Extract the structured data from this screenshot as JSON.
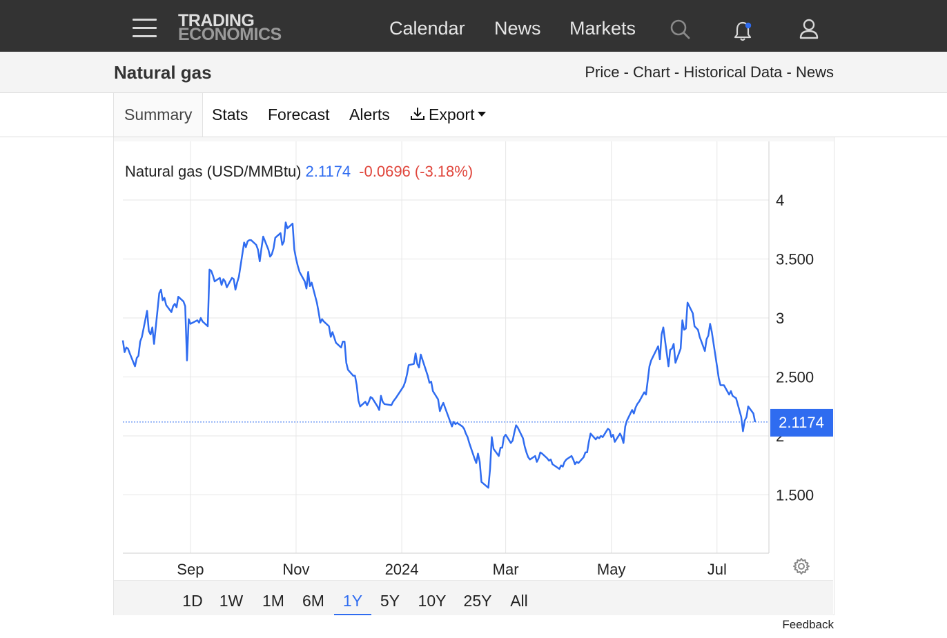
{
  "header": {
    "logo_line1": "TRADING",
    "logo_line2": "ECONOMICS",
    "nav": [
      "Calendar",
      "News",
      "Markets"
    ],
    "icons": [
      "menu-icon",
      "search-icon",
      "bell-icon",
      "user-icon"
    ]
  },
  "subheader": {
    "title": "Natural gas",
    "crumbs": [
      "Price",
      "Chart",
      "Historical Data",
      "News"
    ],
    "sep": " - "
  },
  "tabs": {
    "summary": "Summary",
    "stats": "Stats",
    "forecast": "Forecast",
    "alerts": "Alerts",
    "export": "Export"
  },
  "ranges": {
    "items": [
      "1D",
      "1W",
      "1M",
      "6M",
      "1Y",
      "5Y",
      "10Y",
      "25Y",
      "All"
    ],
    "active": "1Y"
  },
  "footer": {
    "feedback": "Feedback"
  },
  "chart_data": {
    "type": "line",
    "title": "Natural gas (USD/MMBtu)",
    "last_value": "2.1174",
    "change": "-0.0696",
    "change_pct": "(-3.18%)",
    "last_label": "2.1174",
    "colors": {
      "line": "#2f6cf0",
      "change": "#e0463c",
      "grid": "#e6e6e6"
    },
    "y_ticks": [
      {
        "value": 1.5,
        "label": "1.500"
      },
      {
        "value": 2,
        "label": "2"
      },
      {
        "value": 2.5,
        "label": "2.500"
      },
      {
        "value": 3,
        "label": "3"
      },
      {
        "value": 3.5,
        "label": "3.500"
      },
      {
        "value": 4,
        "label": "4"
      }
    ],
    "x_ticks": [
      {
        "date": "2023-09-01",
        "label": "Sep"
      },
      {
        "date": "2023-11-01",
        "label": "Nov"
      },
      {
        "date": "2024-01-01",
        "label": "2024"
      },
      {
        "date": "2024-03-01",
        "label": "Mar"
      },
      {
        "date": "2024-05-01",
        "label": "May"
      },
      {
        "date": "2024-07-01",
        "label": "Jul"
      }
    ],
    "grid": true,
    "series": [
      {
        "values": [
          [
            "2023-07-24",
            2.81
          ],
          [
            "2023-07-25",
            2.71
          ],
          [
            "2023-07-26",
            2.75
          ],
          [
            "2023-07-27",
            2.74
          ],
          [
            "2023-07-28",
            2.7
          ],
          [
            "2023-07-31",
            2.59
          ],
          [
            "2023-08-01",
            2.66
          ],
          [
            "2023-08-02",
            2.68
          ],
          [
            "2023-08-03",
            2.8
          ],
          [
            "2023-08-04",
            2.84
          ],
          [
            "2023-08-07",
            3.06
          ],
          [
            "2023-08-08",
            2.89
          ],
          [
            "2023-08-09",
            2.86
          ],
          [
            "2023-08-10",
            2.92
          ],
          [
            "2023-08-11",
            2.78
          ],
          [
            "2023-08-14",
            3.21
          ],
          [
            "2023-08-15",
            3.24
          ],
          [
            "2023-08-16",
            3.15
          ],
          [
            "2023-08-17",
            3.17
          ],
          [
            "2023-08-18",
            3.11
          ],
          [
            "2023-08-21",
            3.05
          ],
          [
            "2023-08-22",
            3.1
          ],
          [
            "2023-08-23",
            3.12
          ],
          [
            "2023-08-24",
            3.09
          ],
          [
            "2023-08-25",
            3.18
          ],
          [
            "2023-08-28",
            3.14
          ],
          [
            "2023-08-29",
            3.1
          ],
          [
            "2023-08-30",
            2.64
          ],
          [
            "2023-08-31",
            2.99
          ],
          [
            "2023-09-01",
            2.95
          ],
          [
            "2023-09-05",
            2.98
          ],
          [
            "2023-09-06",
            2.96
          ],
          [
            "2023-09-07",
            3.0
          ],
          [
            "2023-09-08",
            2.97
          ],
          [
            "2023-09-11",
            2.93
          ],
          [
            "2023-09-12",
            3.41
          ],
          [
            "2023-09-13",
            3.4
          ],
          [
            "2023-09-14",
            3.36
          ],
          [
            "2023-09-15",
            3.31
          ],
          [
            "2023-09-18",
            3.34
          ],
          [
            "2023-09-19",
            3.28
          ],
          [
            "2023-09-20",
            3.33
          ],
          [
            "2023-09-21",
            3.31
          ],
          [
            "2023-09-22",
            3.26
          ],
          [
            "2023-09-25",
            3.34
          ],
          [
            "2023-09-26",
            3.33
          ],
          [
            "2023-09-27",
            3.24
          ],
          [
            "2023-09-28",
            3.3
          ],
          [
            "2023-09-29",
            3.35
          ],
          [
            "2023-10-02",
            3.64
          ],
          [
            "2023-10-03",
            3.6
          ],
          [
            "2023-10-04",
            3.65
          ],
          [
            "2023-10-05",
            3.66
          ],
          [
            "2023-10-06",
            3.66
          ],
          [
            "2023-10-09",
            3.62
          ],
          [
            "2023-10-10",
            3.58
          ],
          [
            "2023-10-11",
            3.48
          ],
          [
            "2023-10-12",
            3.59
          ],
          [
            "2023-10-13",
            3.69
          ],
          [
            "2023-10-16",
            3.58
          ],
          [
            "2023-10-17",
            3.52
          ],
          [
            "2023-10-18",
            3.54
          ],
          [
            "2023-10-19",
            3.59
          ],
          [
            "2023-10-20",
            3.68
          ],
          [
            "2023-10-23",
            3.72
          ],
          [
            "2023-10-24",
            3.62
          ],
          [
            "2023-10-25",
            3.65
          ],
          [
            "2023-10-26",
            3.81
          ],
          [
            "2023-10-27",
            3.76
          ],
          [
            "2023-10-30",
            3.8
          ],
          [
            "2023-10-31",
            3.58
          ],
          [
            "2023-11-01",
            3.5
          ],
          [
            "2023-11-02",
            3.44
          ],
          [
            "2023-11-03",
            3.39
          ],
          [
            "2023-11-06",
            3.31
          ],
          [
            "2023-11-07",
            3.25
          ],
          [
            "2023-11-08",
            3.39
          ],
          [
            "2023-11-09",
            3.27
          ],
          [
            "2023-11-10",
            3.3
          ],
          [
            "2023-11-13",
            3.13
          ],
          [
            "2023-11-14",
            3.05
          ],
          [
            "2023-11-15",
            2.96
          ],
          [
            "2023-11-16",
            2.99
          ],
          [
            "2023-11-17",
            2.97
          ],
          [
            "2023-11-20",
            2.93
          ],
          [
            "2023-11-21",
            2.84
          ],
          [
            "2023-11-22",
            2.88
          ],
          [
            "2023-11-24",
            2.79
          ],
          [
            "2023-11-27",
            2.75
          ],
          [
            "2023-11-28",
            2.8
          ],
          [
            "2023-11-29",
            2.8
          ],
          [
            "2023-11-30",
            2.62
          ],
          [
            "2023-12-01",
            2.56
          ],
          [
            "2023-12-04",
            2.51
          ],
          [
            "2023-12-05",
            2.51
          ],
          [
            "2023-12-06",
            2.43
          ],
          [
            "2023-12-07",
            2.3
          ],
          [
            "2023-12-08",
            2.25
          ],
          [
            "2023-12-11",
            2.29
          ],
          [
            "2023-12-12",
            2.26
          ],
          [
            "2023-12-13",
            2.29
          ],
          [
            "2023-12-14",
            2.33
          ],
          [
            "2023-12-15",
            2.32
          ],
          [
            "2023-12-18",
            2.25
          ],
          [
            "2023-12-19",
            2.22
          ],
          [
            "2023-12-20",
            2.34
          ],
          [
            "2023-12-21",
            2.29
          ],
          [
            "2023-12-22",
            2.27
          ],
          [
            "2023-12-26",
            2.26
          ],
          [
            "2023-12-27",
            2.29
          ],
          [
            "2023-12-28",
            2.31
          ],
          [
            "2023-12-29",
            2.33
          ],
          [
            "2024-01-02",
            2.42
          ],
          [
            "2024-01-03",
            2.46
          ],
          [
            "2024-01-04",
            2.52
          ],
          [
            "2024-01-05",
            2.6
          ],
          [
            "2024-01-08",
            2.61
          ],
          [
            "2024-01-09",
            2.7
          ],
          [
            "2024-01-10",
            2.61
          ],
          [
            "2024-01-11",
            2.58
          ],
          [
            "2024-01-12",
            2.69
          ],
          [
            "2024-01-16",
            2.51
          ],
          [
            "2024-01-17",
            2.45
          ],
          [
            "2024-01-18",
            2.46
          ],
          [
            "2024-01-19",
            2.38
          ],
          [
            "2024-01-22",
            2.31
          ],
          [
            "2024-01-23",
            2.21
          ],
          [
            "2024-01-24",
            2.25
          ],
          [
            "2024-01-25",
            2.28
          ],
          [
            "2024-01-26",
            2.24
          ],
          [
            "2024-01-29",
            2.12
          ],
          [
            "2024-01-30",
            2.08
          ],
          [
            "2024-01-31",
            2.12
          ],
          [
            "2024-02-01",
            2.1
          ],
          [
            "2024-02-02",
            2.11
          ],
          [
            "2024-02-05",
            2.08
          ],
          [
            "2024-02-06",
            2.06
          ],
          [
            "2024-02-07",
            2.02
          ],
          [
            "2024-02-08",
            1.99
          ],
          [
            "2024-02-09",
            1.94
          ],
          [
            "2024-02-12",
            1.81
          ],
          [
            "2024-02-13",
            1.77
          ],
          [
            "2024-02-14",
            1.85
          ],
          [
            "2024-02-15",
            1.78
          ],
          [
            "2024-02-16",
            1.61
          ],
          [
            "2024-02-20",
            1.56
          ],
          [
            "2024-02-21",
            1.72
          ],
          [
            "2024-02-22",
            1.99
          ],
          [
            "2024-02-23",
            1.89
          ],
          [
            "2024-02-26",
            1.83
          ],
          [
            "2024-02-27",
            1.9
          ],
          [
            "2024-02-28",
            1.9
          ],
          [
            "2024-02-29",
            1.99
          ],
          [
            "2024-03-01",
            2.01
          ],
          [
            "2024-03-04",
            1.94
          ],
          [
            "2024-03-05",
            1.96
          ],
          [
            "2024-03-06",
            2.03
          ],
          [
            "2024-03-07",
            2.09
          ],
          [
            "2024-03-08",
            2.07
          ],
          [
            "2024-03-11",
            1.98
          ],
          [
            "2024-03-12",
            1.91
          ],
          [
            "2024-03-13",
            1.86
          ],
          [
            "2024-03-14",
            1.82
          ],
          [
            "2024-03-15",
            1.8
          ],
          [
            "2024-03-18",
            1.83
          ],
          [
            "2024-03-19",
            1.78
          ],
          [
            "2024-03-20",
            1.81
          ],
          [
            "2024-03-21",
            1.86
          ],
          [
            "2024-03-22",
            1.85
          ],
          [
            "2024-03-25",
            1.81
          ],
          [
            "2024-03-26",
            1.79
          ],
          [
            "2024-03-27",
            1.8
          ],
          [
            "2024-03-28",
            1.76
          ],
          [
            "2024-04-01",
            1.72
          ],
          [
            "2024-04-02",
            1.75
          ],
          [
            "2024-04-03",
            1.74
          ],
          [
            "2024-04-04",
            1.78
          ],
          [
            "2024-04-05",
            1.8
          ],
          [
            "2024-04-08",
            1.83
          ],
          [
            "2024-04-09",
            1.8
          ],
          [
            "2024-04-10",
            1.76
          ],
          [
            "2024-04-11",
            1.78
          ],
          [
            "2024-04-12",
            1.77
          ],
          [
            "2024-04-15",
            1.82
          ],
          [
            "2024-04-16",
            1.86
          ],
          [
            "2024-04-17",
            1.86
          ],
          [
            "2024-04-18",
            1.95
          ],
          [
            "2024-04-19",
            2.02
          ],
          [
            "2024-04-22",
            1.97
          ],
          [
            "2024-04-23",
            1.99
          ],
          [
            "2024-04-24",
            1.98
          ],
          [
            "2024-04-25",
            2.0
          ],
          [
            "2024-04-26",
            1.99
          ],
          [
            "2024-04-29",
            2.06
          ],
          [
            "2024-04-30",
            2.05
          ],
          [
            "2024-05-01",
            1.99
          ],
          [
            "2024-05-02",
            2.01
          ],
          [
            "2024-05-03",
            1.95
          ],
          [
            "2024-05-06",
            2.02
          ],
          [
            "2024-05-07",
            1.99
          ],
          [
            "2024-05-08",
            1.94
          ],
          [
            "2024-05-09",
            2.08
          ],
          [
            "2024-05-10",
            2.13
          ],
          [
            "2024-05-13",
            2.22
          ],
          [
            "2024-05-14",
            2.19
          ],
          [
            "2024-05-15",
            2.24
          ],
          [
            "2024-05-16",
            2.27
          ],
          [
            "2024-05-17",
            2.29
          ],
          [
            "2024-05-20",
            2.37
          ],
          [
            "2024-05-21",
            2.35
          ],
          [
            "2024-05-22",
            2.47
          ],
          [
            "2024-05-23",
            2.59
          ],
          [
            "2024-05-24",
            2.64
          ],
          [
            "2024-05-28",
            2.76
          ],
          [
            "2024-05-29",
            2.65
          ],
          [
            "2024-05-30",
            2.86
          ],
          [
            "2024-05-31",
            2.92
          ],
          [
            "2024-06-03",
            2.59
          ],
          [
            "2024-06-04",
            2.73
          ],
          [
            "2024-06-05",
            2.74
          ],
          [
            "2024-06-06",
            2.78
          ],
          [
            "2024-06-07",
            2.62
          ],
          [
            "2024-06-10",
            2.74
          ],
          [
            "2024-06-11",
            2.98
          ],
          [
            "2024-06-12",
            2.9
          ],
          [
            "2024-06-13",
            2.91
          ],
          [
            "2024-06-14",
            3.13
          ],
          [
            "2024-06-17",
            3.04
          ],
          [
            "2024-06-18",
            2.93
          ],
          [
            "2024-06-20",
            2.9
          ],
          [
            "2024-06-21",
            2.84
          ],
          [
            "2024-06-24",
            2.72
          ],
          [
            "2024-06-25",
            2.82
          ],
          [
            "2024-06-26",
            2.85
          ],
          [
            "2024-06-27",
            2.95
          ],
          [
            "2024-06-28",
            2.88
          ],
          [
            "2024-07-01",
            2.59
          ],
          [
            "2024-07-02",
            2.49
          ],
          [
            "2024-07-03",
            2.43
          ],
          [
            "2024-07-05",
            2.43
          ],
          [
            "2024-07-08",
            2.35
          ],
          [
            "2024-07-09",
            2.38
          ],
          [
            "2024-07-10",
            2.34
          ],
          [
            "2024-07-11",
            2.33
          ],
          [
            "2024-07-12",
            2.32
          ],
          [
            "2024-07-15",
            2.16
          ],
          [
            "2024-07-16",
            2.04
          ],
          [
            "2024-07-17",
            2.13
          ],
          [
            "2024-07-18",
            2.16
          ],
          [
            "2024-07-19",
            2.25
          ],
          [
            "2024-07-22",
            2.19
          ],
          [
            "2024-07-23",
            2.1174
          ]
        ]
      }
    ]
  }
}
